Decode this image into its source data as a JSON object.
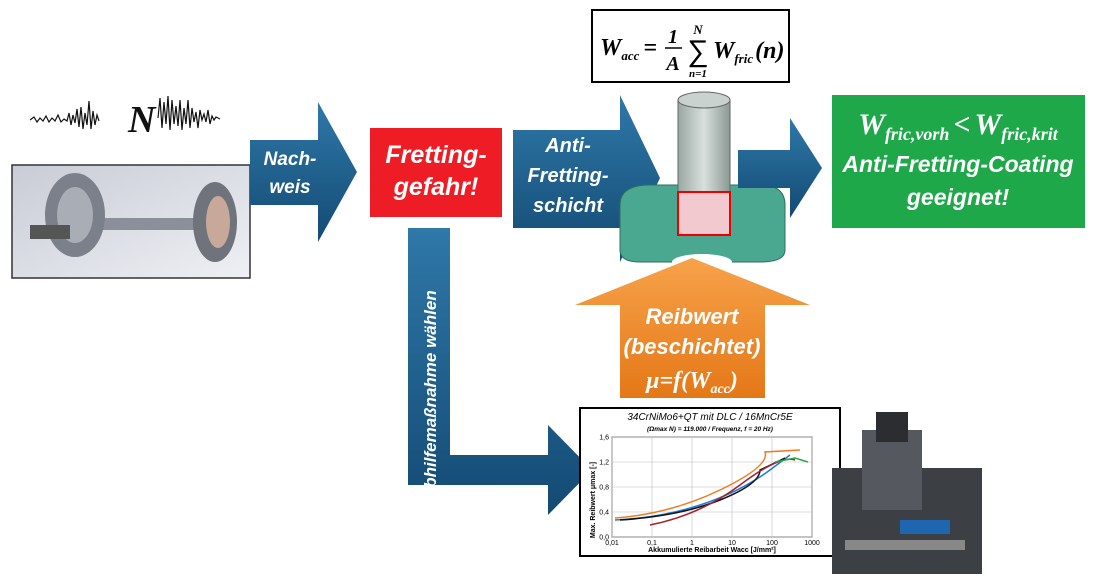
{
  "signal": {
    "label": "N"
  },
  "formula": {
    "lhs": "W",
    "lhs_sub": "acc",
    "eq": "=",
    "num": "1",
    "den": "A",
    "sum_top": "N",
    "sum_bottom": "n=1",
    "term": "W",
    "term_sub": "fric",
    "arg": "(n)"
  },
  "arrow_nachweis": {
    "lines": [
      "Nach-",
      "weis"
    ]
  },
  "danger_box": {
    "lines": [
      "Fretting-",
      "gefahr!"
    ]
  },
  "arrow_coating": {
    "lines": [
      "Anti-",
      "Fretting-",
      "schicht"
    ]
  },
  "result_box": {
    "lhs": "W",
    "lhs_sub": "fric,vorh",
    "op": "<",
    "rhs": "W",
    "rhs_sub": "fric,krit",
    "lines": [
      "Anti-Fretting-Coating",
      "geeignet!"
    ]
  },
  "arrow_remedy": {
    "label": "Abhilfemaßnahme wählen"
  },
  "arrow_friction": {
    "lines": [
      "Reibwert",
      "(beschichtet)"
    ],
    "formula": "μ=f(W",
    "formula_sub": "acc",
    "formula_end": ")"
  },
  "test_chart": {
    "title": "34CrNiMo6+QT mit DLC / 16MnCr5E",
    "subtitle": "(Ωmax N) = 119.000 / Frequenz, f = 20 Hz)",
    "y_label": "Max. Reibwert μmax [-]",
    "x_label": "Akkumulierte Reibarbeit Wacc [J/mm²]",
    "yticks": [
      "0,0",
      "0,4",
      "0,8",
      "1,2",
      "1,6"
    ],
    "xticks": [
      "0,01",
      "0,1",
      "1",
      "10",
      "100",
      "1000"
    ]
  }
}
